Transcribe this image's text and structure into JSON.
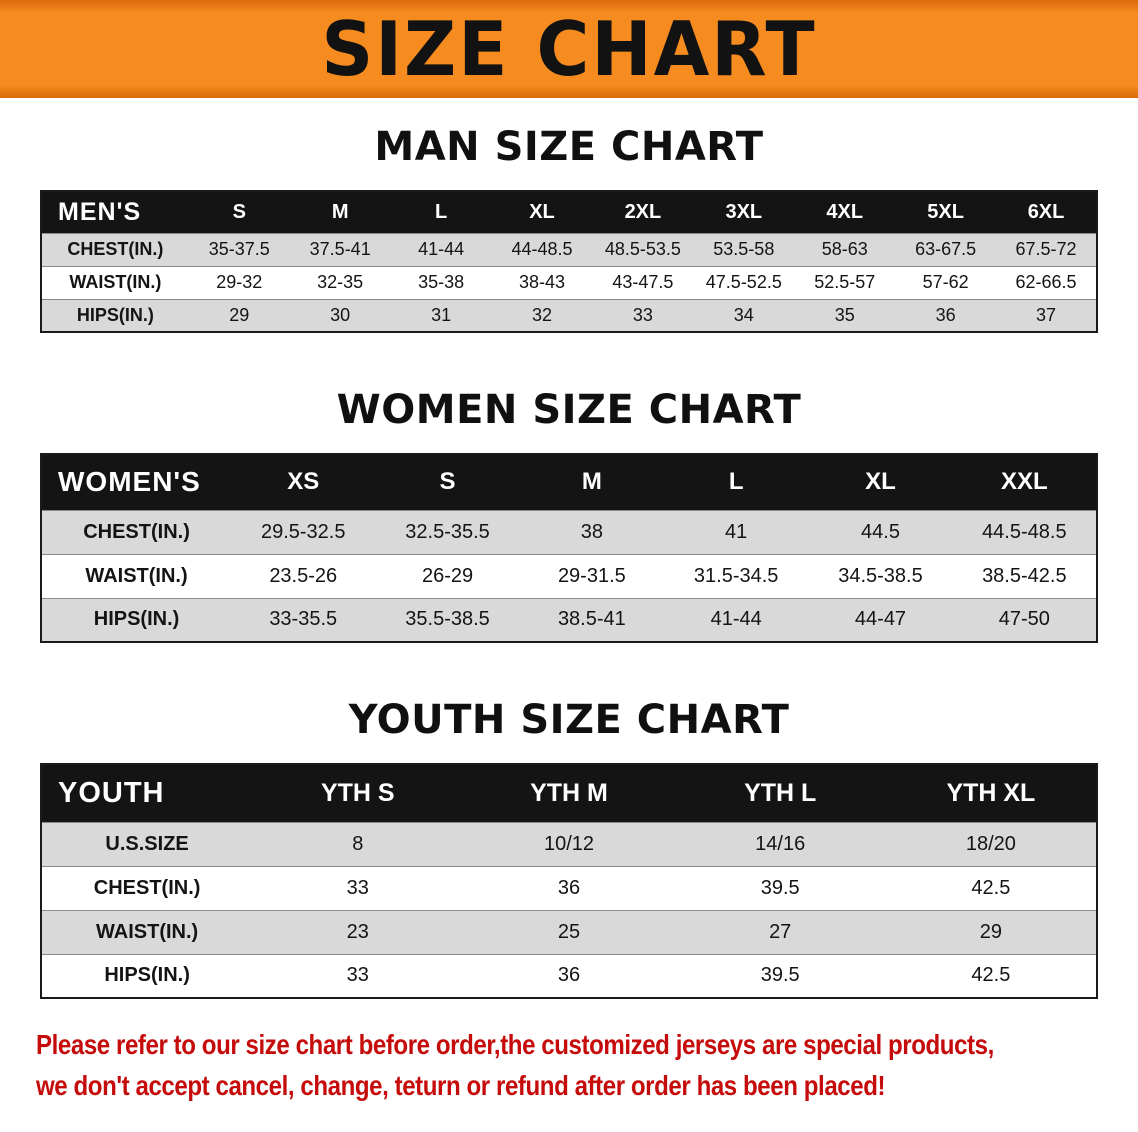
{
  "banner": {
    "title": "SIZE CHART"
  },
  "sections": [
    {
      "id": "men",
      "heading": "MAN SIZE CHART",
      "table": {
        "header": [
          "MEN'S",
          "S",
          "M",
          "L",
          "XL",
          "2XL",
          "3XL",
          "4XL",
          "5XL",
          "6XL"
        ],
        "rows": [
          [
            "CHEST(IN.)",
            "35-37.5",
            "37.5-41",
            "41-44",
            "44-48.5",
            "48.5-53.5",
            "53.5-58",
            "58-63",
            "63-67.5",
            "67.5-72"
          ],
          [
            "WAIST(IN.)",
            "29-32",
            "32-35",
            "35-38",
            "38-43",
            "43-47.5",
            "47.5-52.5",
            "52.5-57",
            "57-62",
            "62-66.5"
          ],
          [
            "HIPS(IN.)",
            "29",
            "30",
            "31",
            "32",
            "33",
            "34",
            "35",
            "36",
            "37"
          ]
        ]
      }
    },
    {
      "id": "women",
      "heading": "WOMEN SIZE CHART",
      "table": {
        "header": [
          "WOMEN'S",
          "XS",
          "S",
          "M",
          "L",
          "XL",
          "XXL"
        ],
        "rows": [
          [
            "CHEST(IN.)",
            "29.5-32.5",
            "32.5-35.5",
            "38",
            "41",
            "44.5",
            "44.5-48.5"
          ],
          [
            "WAIST(IN.)",
            "23.5-26",
            "26-29",
            "29-31.5",
            "31.5-34.5",
            "34.5-38.5",
            "38.5-42.5"
          ],
          [
            "HIPS(IN.)",
            "33-35.5",
            "35.5-38.5",
            "38.5-41",
            "41-44",
            "44-47",
            "47-50"
          ]
        ]
      }
    },
    {
      "id": "youth",
      "heading": "YOUTH SIZE CHART",
      "table": {
        "header": [
          "YOUTH",
          "YTH S",
          "YTH M",
          "YTH L",
          "YTH XL"
        ],
        "rows": [
          [
            "U.S.SIZE",
            "8",
            "10/12",
            "14/16",
            "18/20"
          ],
          [
            "CHEST(IN.)",
            "33",
            "36",
            "39.5",
            "42.5"
          ],
          [
            "WAIST(IN.)",
            "23",
            "25",
            "27",
            "29"
          ],
          [
            "HIPS(IN.)",
            "33",
            "36",
            "39.5",
            "42.5"
          ]
        ]
      }
    }
  ],
  "disclaimer": {
    "line1": "Please refer to our size chart before order,the customized jerseys are special products,",
    "line2": "we don't accept cancel, change, teturn or refund after order has been placed!"
  },
  "colors": {
    "banner_orange": "#f68b1f",
    "header_black": "#141414",
    "row_gray": "#d9d9d9",
    "disclaimer_red": "#c60b0b"
  }
}
